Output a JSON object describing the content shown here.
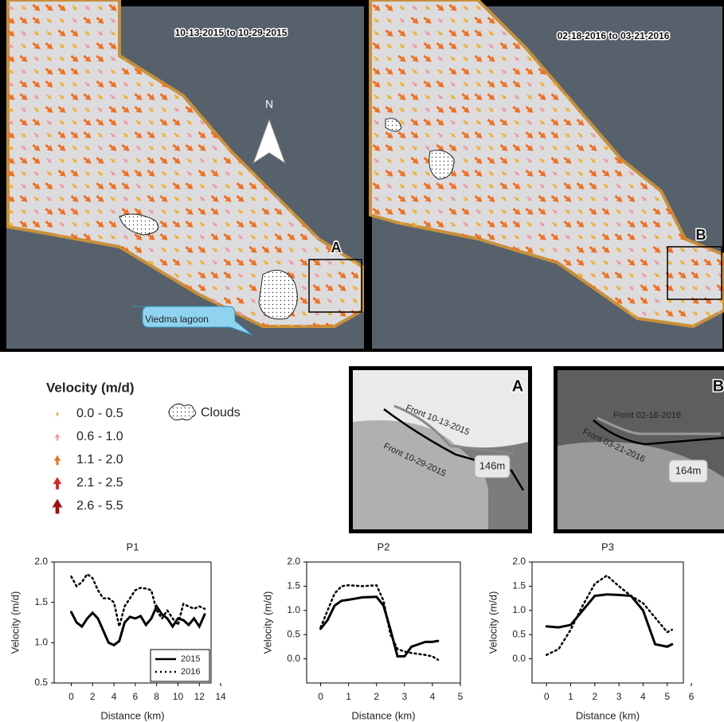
{
  "maps": {
    "panels": [
      {
        "title": "10-13-2015 to 10-29-2015",
        "box_label": "A",
        "north": "N",
        "lagoon": "Viedma lagoon"
      },
      {
        "title": "02-18-2016 to 03-21-2016",
        "box_label": "B"
      }
    ]
  },
  "legend": {
    "title": "Velocity (m/d)",
    "classes": [
      "0.0 - 0.5",
      "0.6 - 1.0",
      "1.1 - 2.0",
      "2.1 - 2.5",
      "2.6 - 5.5"
    ],
    "clouds": "Clouds"
  },
  "insets": [
    {
      "label": "A",
      "front1": "Front 10-13-2015",
      "front2": "Front 10-29-2015",
      "distance": "146m"
    },
    {
      "label": "B",
      "front1": "Front 02-18-2016",
      "front2": "Front 03-21-2016",
      "distance": "164m"
    }
  ],
  "chart_data": [
    {
      "type": "line",
      "title": "P1",
      "x_label": "Distance (km)",
      "y_label": "Velocity (m/d)",
      "x": [
        0,
        0.5,
        1,
        1.5,
        2,
        2.5,
        3,
        3.5,
        4,
        4.5,
        5,
        5.5,
        6,
        6.5,
        7,
        7.5,
        8,
        8.5,
        9,
        9.5,
        10,
        10.5,
        11,
        11.5,
        12,
        12.5
      ],
      "series": [
        {
          "name": "2015",
          "color": "#000000",
          "style": "solid",
          "values": [
            1.38,
            1.25,
            1.2,
            1.3,
            1.37,
            1.3,
            1.15,
            1.0,
            0.97,
            1.02,
            1.25,
            1.32,
            1.3,
            1.33,
            1.22,
            1.3,
            1.45,
            1.35,
            1.3,
            1.2,
            1.3,
            1.28,
            1.22,
            1.3,
            1.2,
            1.35
          ]
        },
        {
          "name": "2016",
          "color": "#000000",
          "style": "dotted",
          "values": [
            1.82,
            1.7,
            1.75,
            1.85,
            1.8,
            1.65,
            1.55,
            1.55,
            1.5,
            1.2,
            1.45,
            1.55,
            1.65,
            1.68,
            1.67,
            1.65,
            1.4,
            1.3,
            1.4,
            1.3,
            1.22,
            1.48,
            1.45,
            1.42,
            1.45,
            1.42
          ]
        }
      ],
      "xlim": [
        -1.6,
        13.1
      ],
      "xticks": [
        0,
        2,
        4,
        6,
        8,
        10,
        12,
        14
      ],
      "ylim": [
        0.5,
        2.0
      ],
      "yticks": [
        0.5,
        {
          "value": 1,
          "label": "1.0"
        },
        1.5,
        {
          "value": 2,
          "label": "2.0"
        }
      ],
      "legend": "lower right"
    },
    {
      "type": "line",
      "title": "P2",
      "x_label": "Distance (km)",
      "y_label": "Velocity (m/d)",
      "x": [
        0,
        0.25,
        0.5,
        0.75,
        1,
        1.5,
        2,
        2.25,
        2.5,
        2.75,
        3,
        3.25,
        3.5,
        3.75,
        4,
        4.2
      ],
      "series": [
        {
          "name": "2015",
          "color": "#000000",
          "style": "solid",
          "values": [
            0.62,
            0.8,
            1.1,
            1.2,
            1.22,
            1.27,
            1.28,
            1.1,
            0.6,
            0.05,
            0.05,
            0.25,
            0.3,
            0.35,
            0.35,
            0.37
          ]
        },
        {
          "name": "2016",
          "color": "#000000",
          "style": "dotted",
          "values": [
            0.65,
            1.0,
            1.35,
            1.5,
            1.52,
            1.5,
            1.52,
            1.2,
            0.5,
            0.2,
            0.15,
            0.12,
            0.1,
            0.08,
            0.05,
            -0.02
          ]
        }
      ],
      "xlim": [
        -0.5,
        5
      ],
      "xticks": [
        0,
        1,
        2,
        3,
        4,
        5
      ],
      "ylim": [
        -0.5,
        2.0
      ],
      "yticks": [
        {
          "value": 0,
          "label": "0.0"
        },
        0.5,
        {
          "value": 1,
          "label": "1.0"
        },
        1.5,
        {
          "value": 2,
          "label": "2.0"
        }
      ]
    },
    {
      "type": "line",
      "title": "P3",
      "x_label": "Distance (km)",
      "y_label": "Velocity (m/d)",
      "x": [
        0,
        0.5,
        1,
        1.5,
        2,
        2.5,
        3,
        3.5,
        4,
        4.5,
        5,
        5.2
      ],
      "series": [
        {
          "name": "2015",
          "color": "#000000",
          "style": "solid",
          "values": [
            0.67,
            0.65,
            0.7,
            1.0,
            1.3,
            1.33,
            1.32,
            1.3,
            1.0,
            0.3,
            0.25,
            0.3
          ]
        },
        {
          "name": "2016",
          "color": "#000000",
          "style": "dotted",
          "values": [
            0.08,
            0.2,
            0.6,
            1.1,
            1.55,
            1.72,
            1.5,
            1.3,
            1.15,
            0.85,
            0.55,
            0.6
          ]
        }
      ],
      "xlim": [
        -0.6,
        5.67
      ],
      "xticks": [
        0,
        1,
        2,
        3,
        4,
        5,
        6
      ],
      "ylim": [
        -0.5,
        2.0
      ],
      "yticks": [
        {
          "value": 0,
          "label": "0.0"
        },
        0.5,
        {
          "value": 1,
          "label": "1.0"
        },
        1.5,
        {
          "value": 2,
          "label": "2.0"
        }
      ]
    }
  ]
}
